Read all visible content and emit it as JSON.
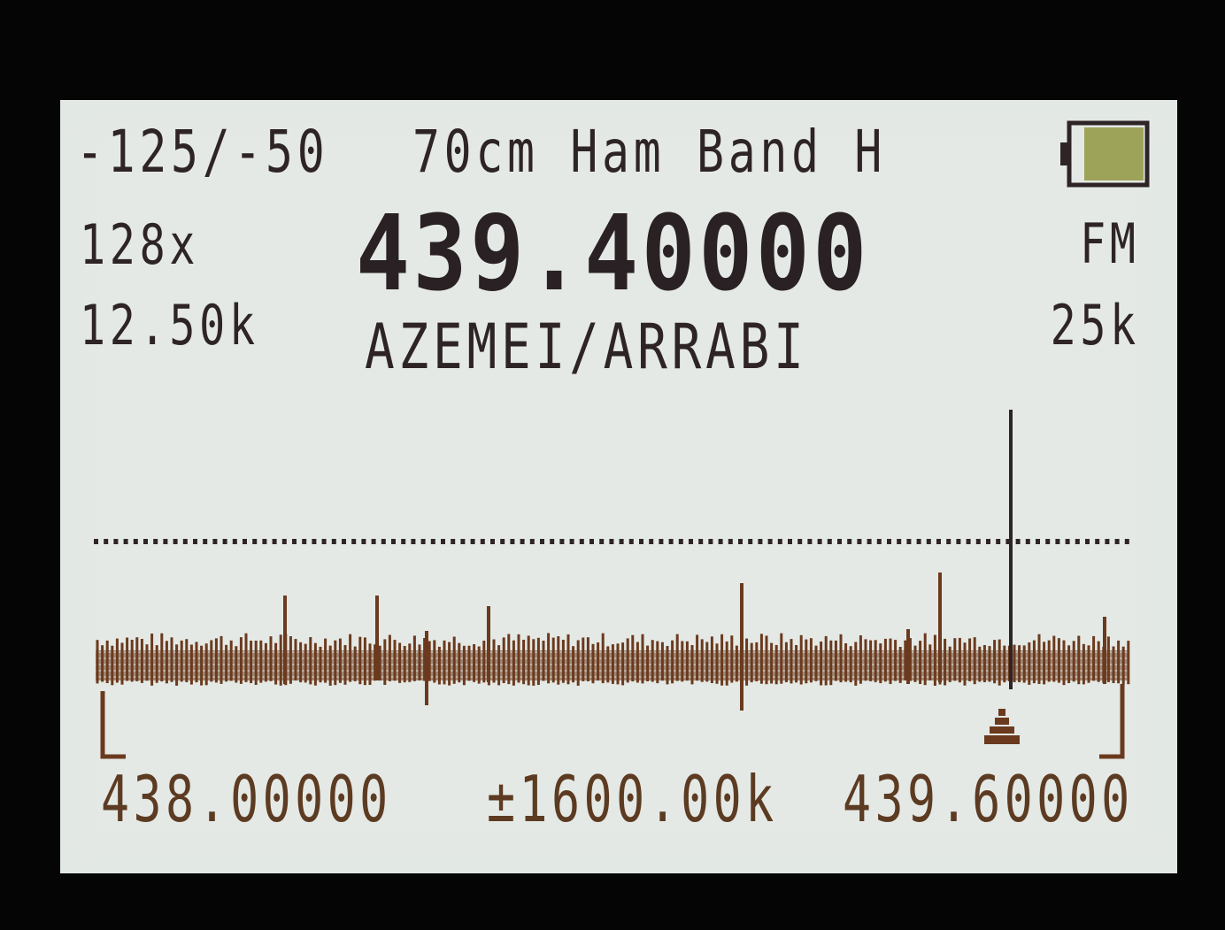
{
  "header": {
    "range": "-125/-50",
    "band_name": "70cm Ham Band H"
  },
  "left_info": {
    "zoom": "128x",
    "step": "12.50k"
  },
  "main": {
    "frequency": "439.40000",
    "channel_name": "AZEMEI/ARRABI"
  },
  "right_info": {
    "mode": "FM",
    "bandwidth": "25k"
  },
  "battery": {
    "level": 0.8,
    "fill_color": "#9ea35a"
  },
  "spectrum": {
    "start_freq": "438.00000",
    "span": "±1600.00k",
    "end_freq": "439.60000",
    "trace_color": "#6b3a1e",
    "threshold_color": "#2e2426",
    "marker": "triangle-marker"
  }
}
